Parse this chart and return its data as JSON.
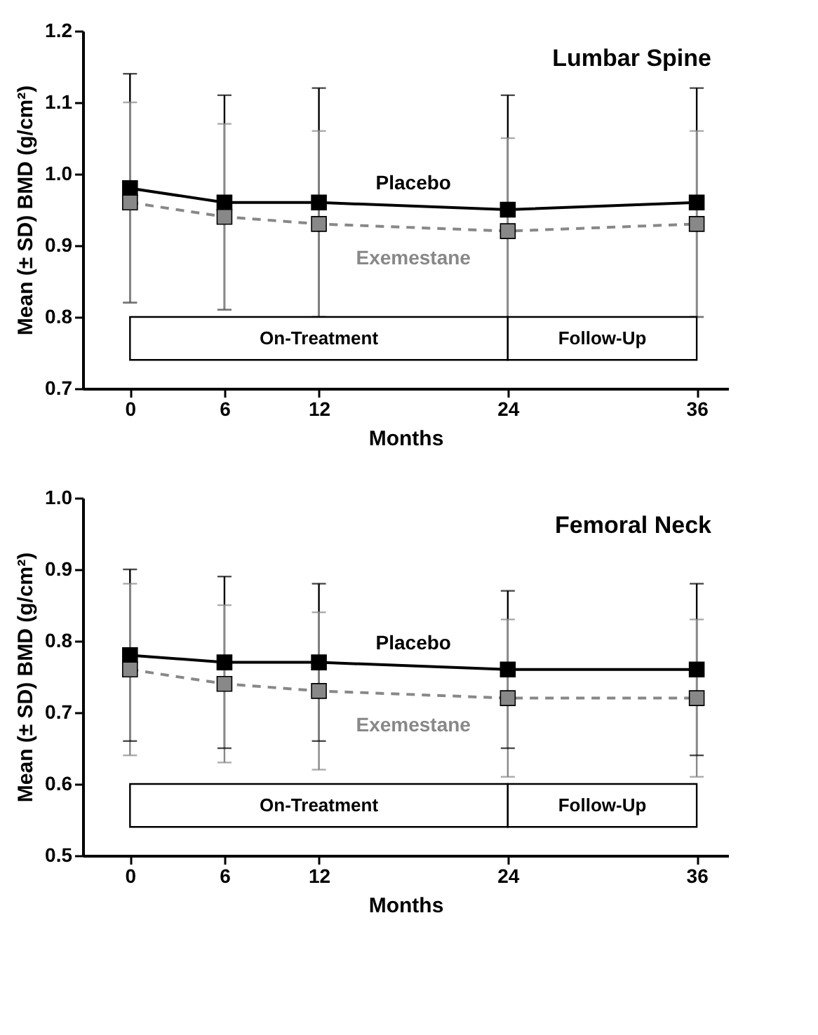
{
  "chart_data": [
    {
      "type": "line",
      "title": "Lumbar Spine",
      "xlabel": "Months",
      "ylabel": "Mean (± SD) BMD (g/cm²)",
      "x": [
        0,
        6,
        12,
        24,
        36
      ],
      "xlim": [
        -3,
        38
      ],
      "xticks": [
        0,
        6,
        12,
        24,
        36
      ],
      "ylim": [
        0.7,
        1.2
      ],
      "yticks": [
        0.7,
        0.8,
        0.9,
        {
          "value": 1,
          "label": "1.0"
        },
        1.1,
        1.2
      ],
      "grid": false,
      "legend": false,
      "marker": "square",
      "series": [
        {
          "name": "Placebo",
          "color": "#000000",
          "line_style": "solid",
          "values": [
            0.98,
            0.96,
            0.96,
            0.95,
            0.96
          ],
          "errors": [
            [
              0.82,
              1.14
            ],
            [
              0.81,
              1.11
            ],
            [
              0.8,
              1.12
            ],
            [
              0.79,
              1.11
            ],
            [
              0.8,
              1.12
            ]
          ]
        },
        {
          "name": "Exemestane",
          "color": "#888888",
          "line_style": "dashed",
          "values": [
            0.96,
            0.94,
            0.93,
            0.92,
            0.93
          ],
          "errors": [
            [
              0.82,
              1.1
            ],
            [
              0.81,
              1.07
            ],
            [
              0.8,
              1.06
            ],
            [
              0.79,
              1.05
            ],
            [
              0.8,
              1.06
            ]
          ]
        }
      ],
      "bands": [
        {
          "axis": "x",
          "from": 0,
          "to": 24,
          "label": "On-Treatment"
        },
        {
          "axis": "x",
          "from": 24,
          "to": 36,
          "label": "Follow-Up"
        }
      ]
    },
    {
      "type": "line",
      "title": "Femoral Neck",
      "xlabel": "Months",
      "ylabel": "Mean (± SD) BMD (g/cm²)",
      "x": [
        0,
        6,
        12,
        24,
        36
      ],
      "xlim": [
        -3,
        38
      ],
      "xticks": [
        0,
        6,
        12,
        24,
        36
      ],
      "ylim": [
        0.5,
        1.0
      ],
      "yticks": [
        0.5,
        0.6,
        0.7,
        0.8,
        0.9,
        {
          "value": 1,
          "label": "1.0"
        }
      ],
      "grid": false,
      "legend": false,
      "marker": "square",
      "series": [
        {
          "name": "Placebo",
          "color": "#000000",
          "line_style": "solid",
          "values": [
            0.78,
            0.77,
            0.77,
            0.76,
            0.76
          ],
          "errors": [
            [
              0.66,
              0.9
            ],
            [
              0.65,
              0.89
            ],
            [
              0.66,
              0.88
            ],
            [
              0.65,
              0.87
            ],
            [
              0.64,
              0.88
            ]
          ]
        },
        {
          "name": "Exemestane",
          "color": "#888888",
          "line_style": "dashed",
          "values": [
            0.76,
            0.74,
            0.73,
            0.72,
            0.72
          ],
          "errors": [
            [
              0.64,
              0.88
            ],
            [
              0.63,
              0.85
            ],
            [
              0.62,
              0.84
            ],
            [
              0.61,
              0.83
            ],
            [
              0.61,
              0.83
            ]
          ]
        }
      ],
      "bands": [
        {
          "axis": "x",
          "from": 0,
          "to": 24,
          "label": "On-Treatment"
        },
        {
          "axis": "x",
          "from": 24,
          "to": 36,
          "label": "Follow-Up"
        }
      ]
    }
  ]
}
